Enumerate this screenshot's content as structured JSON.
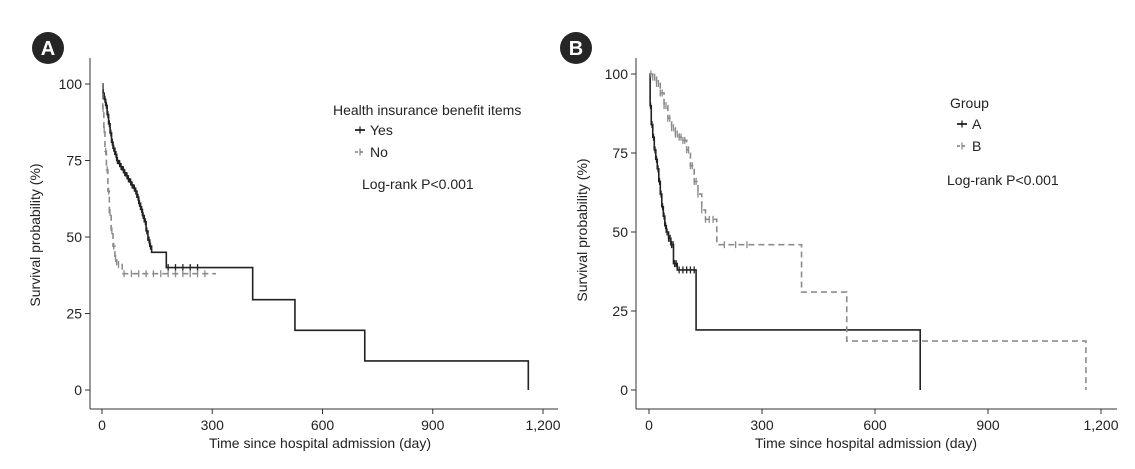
{
  "colors": {
    "series_yes": "#222222",
    "series_no": "#8c8c8c",
    "axis": "#333333",
    "badge": "#262626",
    "badge_text": "#ffffff"
  },
  "chart_data": [
    {
      "panel": "A",
      "type": "line",
      "title": "",
      "xlabel": "Time since hospital admission (day)",
      "ylabel": "Survival probability (%)",
      "xlim": [
        0,
        1200
      ],
      "ylim": [
        0,
        100
      ],
      "xticks": [
        0,
        300,
        600,
        900,
        1200
      ],
      "xtick_labels": [
        "0",
        "300",
        "600",
        "900",
        "1,200"
      ],
      "yticks": [
        0,
        25,
        50,
        75,
        100
      ],
      "ytick_labels": [
        "0",
        "25",
        "50",
        "75",
        "100"
      ],
      "grid": false,
      "legend_title": "Health insurance benefit items",
      "legend_position": "top-right",
      "annotation": "Log-rank P<0.001",
      "series": [
        {
          "name": "Yes",
          "style": "solid",
          "step": [
            [
              0,
              100
            ],
            [
              3,
              97
            ],
            [
              6,
              95
            ],
            [
              10,
              93
            ],
            [
              14,
              90
            ],
            [
              18,
              87
            ],
            [
              22,
              84
            ],
            [
              26,
              81
            ],
            [
              30,
              79
            ],
            [
              35,
              77
            ],
            [
              40,
              75
            ],
            [
              45,
              74
            ],
            [
              50,
              73
            ],
            [
              55,
              72
            ],
            [
              60,
              71
            ],
            [
              65,
              70
            ],
            [
              70,
              69
            ],
            [
              75,
              68
            ],
            [
              80,
              67
            ],
            [
              85,
              66
            ],
            [
              90,
              65
            ],
            [
              95,
              63
            ],
            [
              100,
              61
            ],
            [
              105,
              59
            ],
            [
              110,
              57
            ],
            [
              115,
              55
            ],
            [
              120,
              52
            ],
            [
              125,
              49
            ],
            [
              130,
              47
            ],
            [
              135,
              45
            ],
            [
              175,
              40
            ],
            [
              410,
              29.5
            ],
            [
              525,
              19.5
            ],
            [
              715,
              9.5
            ],
            [
              1160,
              0
            ]
          ],
          "end": 1160,
          "censored": [
            8,
            12,
            16,
            20,
            24,
            28,
            32,
            38,
            42,
            48,
            52,
            58,
            62,
            68,
            72,
            78,
            82,
            88,
            92,
            98,
            102,
            108,
            112,
            118,
            122,
            128,
            132,
            180,
            200,
            220,
            240,
            260
          ]
        },
        {
          "name": "No",
          "style": "dashed",
          "step": [
            [
              0,
              100
            ],
            [
              2,
              92
            ],
            [
              5,
              85
            ],
            [
              8,
              78
            ],
            [
              12,
              72
            ],
            [
              16,
              65
            ],
            [
              20,
              58
            ],
            [
              25,
              52
            ],
            [
              30,
              47
            ],
            [
              35,
              43
            ],
            [
              40,
              41
            ],
            [
              55,
              38
            ]
          ],
          "end": 310,
          "censored": [
            3,
            6,
            10,
            14,
            18,
            22,
            27,
            32,
            37,
            45,
            60,
            80,
            100,
            120,
            140,
            160,
            180,
            200,
            220,
            240,
            260,
            280
          ]
        }
      ]
    },
    {
      "panel": "B",
      "type": "line",
      "title": "",
      "xlabel": "Time since hospital admission (day)",
      "ylabel": "Survival probability (%)",
      "xlim": [
        0,
        1200
      ],
      "ylim": [
        0,
        100
      ],
      "xticks": [
        0,
        300,
        600,
        900,
        1200
      ],
      "xtick_labels": [
        "0",
        "300",
        "600",
        "900",
        "1,200"
      ],
      "yticks": [
        0,
        25,
        50,
        75,
        100
      ],
      "ytick_labels": [
        "0",
        "25",
        "50",
        "75",
        "100"
      ],
      "grid": false,
      "legend_title": "Group",
      "legend_position": "top-right",
      "annotation": "Log-rank P<0.001",
      "series": [
        {
          "name": "A",
          "style": "solid",
          "step": [
            [
              0,
              100
            ],
            [
              3,
              90
            ],
            [
              6,
              84
            ],
            [
              10,
              80
            ],
            [
              14,
              76
            ],
            [
              18,
              73
            ],
            [
              22,
              70
            ],
            [
              26,
              66
            ],
            [
              30,
              62
            ],
            [
              34,
              58
            ],
            [
              38,
              55
            ],
            [
              42,
              52
            ],
            [
              46,
              50
            ],
            [
              52,
              48
            ],
            [
              58,
              46
            ],
            [
              65,
              40
            ],
            [
              75,
              38
            ],
            [
              125,
              19
            ],
            [
              720,
              0
            ]
          ],
          "end": 720,
          "censored": [
            4,
            8,
            12,
            16,
            20,
            24,
            28,
            32,
            36,
            40,
            44,
            48,
            52,
            56,
            60,
            64,
            68,
            72,
            80,
            90,
            100,
            110,
            120
          ]
        },
        {
          "name": "B",
          "style": "dashed",
          "step": [
            [
              0,
              100
            ],
            [
              10,
              99
            ],
            [
              20,
              97
            ],
            [
              30,
              94
            ],
            [
              40,
              90
            ],
            [
              50,
              86
            ],
            [
              60,
              83
            ],
            [
              70,
              81
            ],
            [
              80,
              80
            ],
            [
              90,
              79
            ],
            [
              100,
              76
            ],
            [
              110,
              71
            ],
            [
              120,
              66
            ],
            [
              130,
              62
            ],
            [
              140,
              57
            ],
            [
              150,
              54
            ],
            [
              180,
              46
            ],
            [
              405,
              31
            ],
            [
              525,
              15.5
            ],
            [
              1160,
              0
            ]
          ],
          "end": 1160,
          "censored": [
            5,
            10,
            15,
            20,
            25,
            30,
            35,
            40,
            45,
            50,
            55,
            60,
            65,
            70,
            75,
            80,
            85,
            90,
            95,
            100,
            105,
            110,
            115,
            120,
            125,
            130,
            140,
            150,
            160,
            170,
            200,
            230,
            260
          ]
        }
      ]
    }
  ]
}
